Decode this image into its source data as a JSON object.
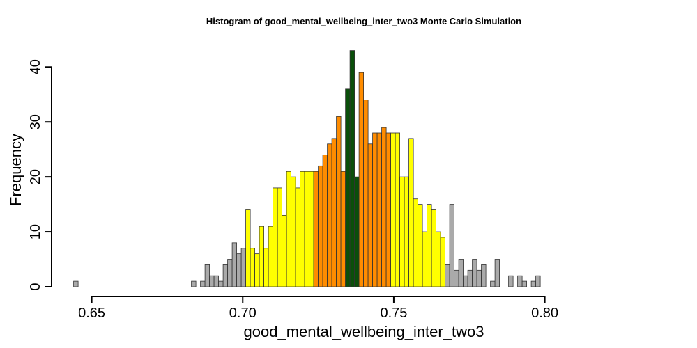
{
  "chart_data": {
    "type": "bar",
    "title": "Histogram of  good_mental_wellbeing_inter_two3  Monte Carlo Simulation",
    "xlabel": "good_mental_wellbeing_inter_two3",
    "ylabel": "Frequency",
    "xlim": [
      0.644,
      0.836
    ],
    "ylim": [
      0,
      43
    ],
    "x_ticks": [
      {
        "value": 0.65,
        "label": "0.65"
      },
      {
        "value": 0.7,
        "label": "0.70"
      },
      {
        "value": 0.75,
        "label": "0.75"
      },
      {
        "value": 0.8,
        "label": "0.80"
      }
    ],
    "y_ticks": [
      {
        "value": 0,
        "label": "0"
      },
      {
        "value": 10,
        "label": "10"
      },
      {
        "value": 20,
        "label": "20"
      },
      {
        "value": 30,
        "label": "30"
      },
      {
        "value": 40,
        "label": "40"
      }
    ],
    "bin_start": 0.644,
    "bin_width": 0.0015,
    "values": [
      1,
      0,
      0,
      0,
      0,
      0,
      0,
      0,
      0,
      0,
      0,
      0,
      0,
      0,
      0,
      0,
      0,
      0,
      0,
      0,
      0,
      0,
      0,
      0,
      0,
      0,
      1,
      0,
      1,
      4,
      2,
      2,
      1,
      4,
      5,
      8,
      6,
      7,
      14,
      7,
      6,
      11,
      7,
      11,
      18,
      18,
      13,
      21,
      20,
      18,
      21,
      21,
      21,
      21,
      22,
      24,
      26,
      27,
      31,
      21,
      36,
      43,
      20,
      39,
      34,
      26,
      28,
      28,
      29,
      28,
      28,
      28,
      20,
      20,
      27,
      16,
      15,
      10,
      15,
      14,
      10,
      9,
      4,
      15,
      3,
      5,
      2,
      3,
      5,
      3,
      4,
      0,
      1,
      5,
      0,
      0,
      2,
      0,
      2,
      1,
      0,
      1,
      2
    ],
    "bin_colors": [
      {
        "from": 0,
        "to": 37,
        "color": "#aaaaaa"
      },
      {
        "from": 38,
        "to": 52,
        "color": "#ffff00"
      },
      {
        "from": 53,
        "to": 59,
        "color": "#ff8c00"
      },
      {
        "from": 60,
        "to": 62,
        "color": "#0a4f0a"
      },
      {
        "from": 63,
        "to": 69,
        "color": "#ff8c00"
      },
      {
        "from": 70,
        "to": 81,
        "color": "#ffff00"
      },
      {
        "from": 82,
        "to": 102,
        "color": "#aaaaaa"
      }
    ]
  }
}
